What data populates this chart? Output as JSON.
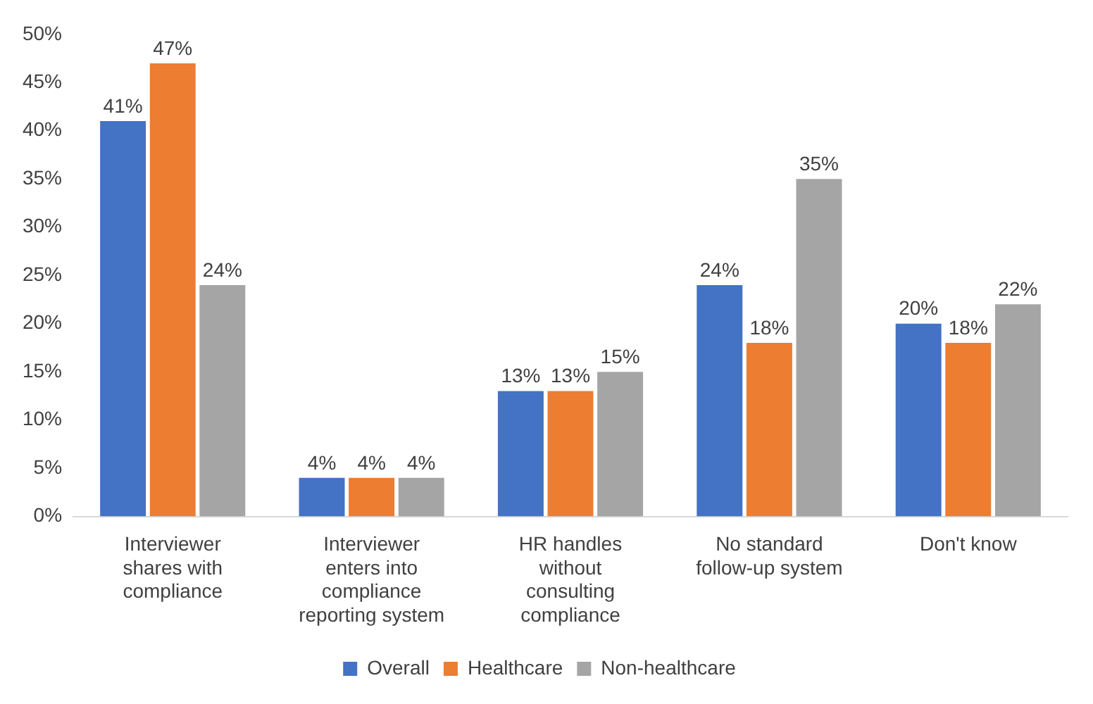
{
  "chart_data": {
    "type": "bar",
    "categories": [
      "Interviewer shares with compliance",
      "Interviewer enters into compliance reporting system",
      "HR handles without consulting compliance",
      "No standard follow-up system",
      "Don't know"
    ],
    "series": [
      {
        "name": "Overall",
        "color": "#4472c4",
        "values": [
          41,
          4,
          13,
          24,
          20
        ],
        "value_labels": [
          "41%",
          "4%",
          "13%",
          "24%",
          "20%"
        ]
      },
      {
        "name": "Healthcare",
        "color": "#ed7d31",
        "values": [
          47,
          4,
          13,
          18,
          18
        ],
        "value_labels": [
          "47%",
          "4%",
          "13%",
          "18%",
          "18%"
        ]
      },
      {
        "name": "Non-healthcare",
        "color": "#a5a5a5",
        "values": [
          24,
          4,
          15,
          35,
          22
        ],
        "value_labels": [
          "24%",
          "4%",
          "15%",
          "35%",
          "22%"
        ]
      }
    ],
    "ylim": [
      0,
      50
    ],
    "yticks": [
      {
        "value": 0,
        "label": "0%"
      },
      {
        "value": 5,
        "label": "5%"
      },
      {
        "value": 10,
        "label": "10%"
      },
      {
        "value": 15,
        "label": "15%"
      },
      {
        "value": 20,
        "label": "20%"
      },
      {
        "value": 25,
        "label": "25%"
      },
      {
        "value": 30,
        "label": "30%"
      },
      {
        "value": 35,
        "label": "35%"
      },
      {
        "value": 40,
        "label": "40%"
      },
      {
        "value": 45,
        "label": "45%"
      },
      {
        "value": 50,
        "label": "50%"
      }
    ],
    "grid": false,
    "legend": "bottom"
  }
}
